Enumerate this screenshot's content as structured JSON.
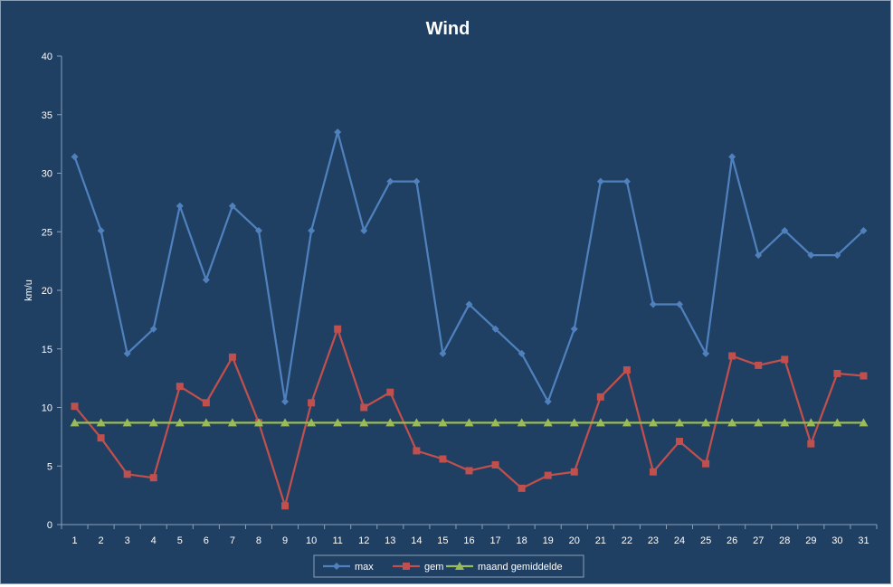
{
  "chart_data": {
    "type": "line",
    "title": "Wind",
    "xlabel": "",
    "ylabel": "km/u",
    "ylim": [
      0,
      40
    ],
    "yticks": [
      0,
      5,
      10,
      15,
      20,
      25,
      30,
      35,
      40
    ],
    "grid": false,
    "legend_position": "bottom",
    "categories": [
      "1",
      "2",
      "3",
      "4",
      "5",
      "6",
      "7",
      "8",
      "9",
      "10",
      "11",
      "12",
      "13",
      "14",
      "15",
      "16",
      "17",
      "18",
      "19",
      "20",
      "21",
      "22",
      "23",
      "24",
      "25",
      "26",
      "27",
      "28",
      "29",
      "30",
      "31"
    ],
    "series": [
      {
        "name": "max",
        "color": "#4f81bd",
        "marker": "diamond",
        "values": [
          31.4,
          25.1,
          14.6,
          16.7,
          27.2,
          20.9,
          27.2,
          25.1,
          10.5,
          25.1,
          33.5,
          25.1,
          29.3,
          29.3,
          14.6,
          18.8,
          16.7,
          14.6,
          10.5,
          16.7,
          29.3,
          29.3,
          18.8,
          18.8,
          14.6,
          31.4,
          23.0,
          25.1,
          23.0,
          23.0,
          25.1
        ]
      },
      {
        "name": "gem",
        "color": "#c0504d",
        "marker": "square",
        "values": [
          10.1,
          7.4,
          4.3,
          4.0,
          11.8,
          10.4,
          14.3,
          8.7,
          1.6,
          10.4,
          16.7,
          10.0,
          11.3,
          6.3,
          5.6,
          4.6,
          5.1,
          3.1,
          4.2,
          4.5,
          10.9,
          13.2,
          4.5,
          7.1,
          5.2,
          14.4,
          13.6,
          14.1,
          6.9,
          12.9,
          12.7
        ]
      },
      {
        "name": "maand gemiddelde",
        "color": "#9bbb59",
        "marker": "triangle",
        "values": [
          8.7,
          8.7,
          8.7,
          8.7,
          8.7,
          8.7,
          8.7,
          8.7,
          8.7,
          8.7,
          8.7,
          8.7,
          8.7,
          8.7,
          8.7,
          8.7,
          8.7,
          8.7,
          8.7,
          8.7,
          8.7,
          8.7,
          8.7,
          8.7,
          8.7,
          8.7,
          8.7,
          8.7,
          8.7,
          8.7,
          8.7
        ]
      }
    ]
  }
}
